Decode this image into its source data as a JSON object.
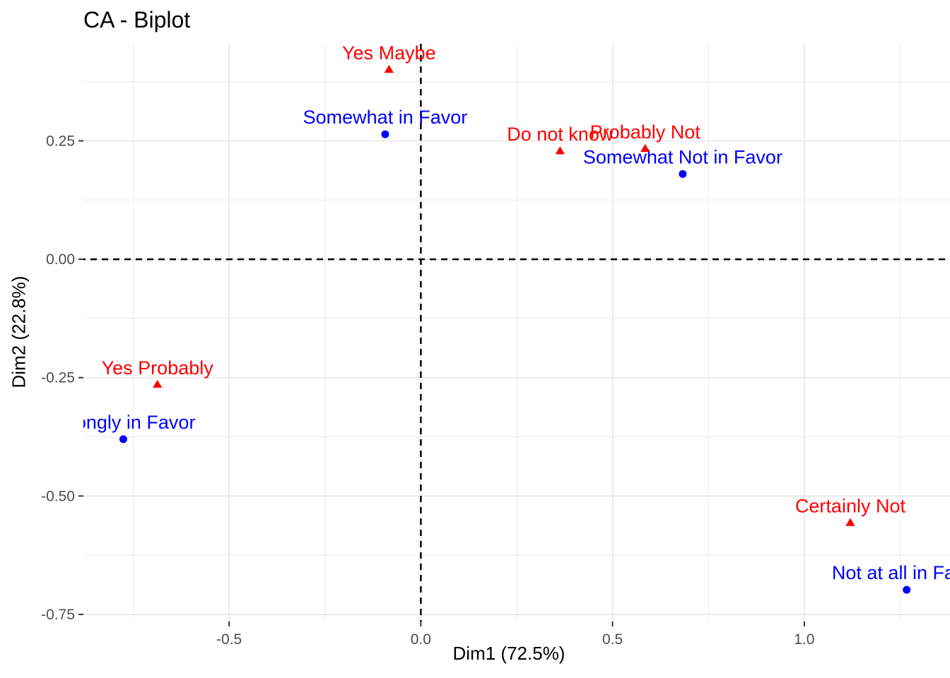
{
  "chart_data": {
    "type": "scatter",
    "title": "CA - Biplot",
    "xlabel": "Dim1 (72.5%)",
    "ylabel": "Dim2 (22.8%)",
    "xlim": [
      -0.88,
      1.38
    ],
    "ylim": [
      -0.765,
      0.455
    ],
    "grid": true,
    "x_ticks": [
      -0.5,
      0.0,
      0.5,
      1.0
    ],
    "x_tick_labels": [
      "-0.5",
      "0.0",
      "0.5",
      "1.0"
    ],
    "y_ticks": [
      -0.75,
      -0.5,
      -0.25,
      0.0,
      0.25
    ],
    "y_tick_labels": [
      "-0.75",
      "-0.50",
      "-0.25",
      "0.00",
      "0.25"
    ],
    "reference_lines": {
      "x": 0,
      "y": 0,
      "style": "dashed"
    },
    "series": [
      {
        "color": "#0000FF",
        "marker": "circle",
        "points": [
          {
            "label": "Somewhat in Favor",
            "x": -0.093,
            "y": 0.264
          },
          {
            "label": "Somewhat Not in Favor",
            "x": 0.683,
            "y": 0.18
          },
          {
            "label": "Strongly in Favor",
            "x": -0.776,
            "y": -0.38
          },
          {
            "label": "Not at all in Favor",
            "x": 1.267,
            "y": -0.698
          }
        ]
      },
      {
        "color": "#FF0000",
        "marker": "triangle",
        "points": [
          {
            "label": "Yes Maybe",
            "x": -0.083,
            "y": 0.4
          },
          {
            "label": "Do not know",
            "x": 0.363,
            "y": 0.228
          },
          {
            "label": "Probably Not",
            "x": 0.585,
            "y": 0.233
          },
          {
            "label": "Yes Probably",
            "x": -0.687,
            "y": -0.265
          },
          {
            "label": "Certainly Not",
            "x": 1.12,
            "y": -0.557
          }
        ]
      }
    ]
  }
}
